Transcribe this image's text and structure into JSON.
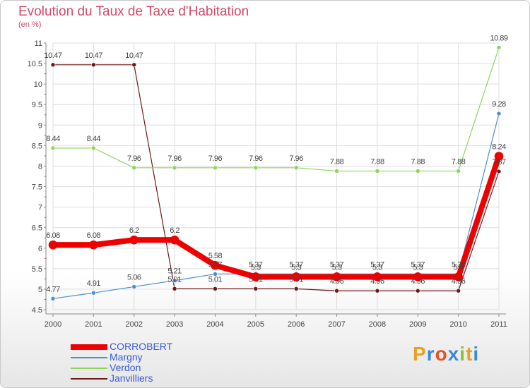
{
  "title": "Evolution du Taux de Taxe d'Habitation",
  "subtitle": "(en %)",
  "logo_text": "Proxiti",
  "colors": {
    "CORROBERT": "#ee0000",
    "Margny": "#4a8fd0",
    "Verdon": "#8ed45a",
    "Janvilliers": "#6b1a1a",
    "title": "#d24a6a",
    "axis": "#888888",
    "grid": "#dddddd"
  },
  "chart_data": {
    "type": "line",
    "title": "Evolution du Taux de Taxe d'Habitation",
    "subtitle": "(en %)",
    "x": [
      "2000",
      "2001",
      "2002",
      "2003",
      "2004",
      "2005",
      "2006",
      "2007",
      "2008",
      "2009",
      "2010",
      "2011"
    ],
    "ylim": [
      4.5,
      11
    ],
    "yticks": [
      "4.5",
      "5",
      "5.5",
      "6",
      "6.5",
      "7",
      "7.5",
      "8",
      "8.5",
      "9",
      "9.5",
      "10",
      "10.5",
      "11"
    ],
    "grid": true,
    "legend_position": "bottom-left",
    "series": [
      {
        "name": "CORROBERT",
        "values": [
          6.08,
          6.08,
          6.2,
          6.2,
          5.58,
          5.3,
          5.3,
          5.3,
          5.3,
          5.3,
          5.3,
          8.24
        ],
        "labels": [
          "6.08",
          "6.08",
          "6.2",
          "6.2",
          "5.58",
          "5.3",
          "5.3",
          "5.3",
          "5.3",
          "5.3",
          "5.3",
          "8.24"
        ]
      },
      {
        "name": "Margny",
        "values": [
          4.77,
          4.91,
          5.06,
          5.21,
          5.37,
          5.37,
          5.37,
          5.37,
          5.37,
          5.37,
          5.37,
          9.28
        ],
        "labels": [
          "4.77",
          "4.91",
          "5.06",
          "5.21",
          "5.37",
          "5.37",
          "5.37",
          "5.37",
          "5.37",
          "5.37",
          "5.37",
          "9.28"
        ]
      },
      {
        "name": "Verdon",
        "values": [
          8.44,
          8.44,
          7.96,
          7.96,
          7.96,
          7.96,
          7.96,
          7.88,
          7.88,
          7.88,
          7.88,
          10.89
        ],
        "labels": [
          "8.44",
          "8.44",
          "7.96",
          "7.96",
          "7.96",
          "7.96",
          "7.96",
          "7.88",
          "7.88",
          "7.88",
          "7.88",
          "10.89"
        ]
      },
      {
        "name": "Janvilliers",
        "values": [
          10.47,
          10.47,
          10.47,
          5.01,
          5.01,
          5.01,
          5.01,
          4.96,
          4.96,
          4.96,
          4.96,
          7.87
        ],
        "labels": [
          "10.47",
          "10.47",
          "10.47",
          "5.01",
          "5.01",
          "5.01",
          "5.01",
          "4.96",
          "4.96",
          "4.96",
          "4.96",
          "7.87"
        ]
      }
    ]
  },
  "legend": [
    {
      "label": "CORROBERT"
    },
    {
      "label": "Margny"
    },
    {
      "label": "Verdon"
    },
    {
      "label": "Janvilliers"
    }
  ]
}
